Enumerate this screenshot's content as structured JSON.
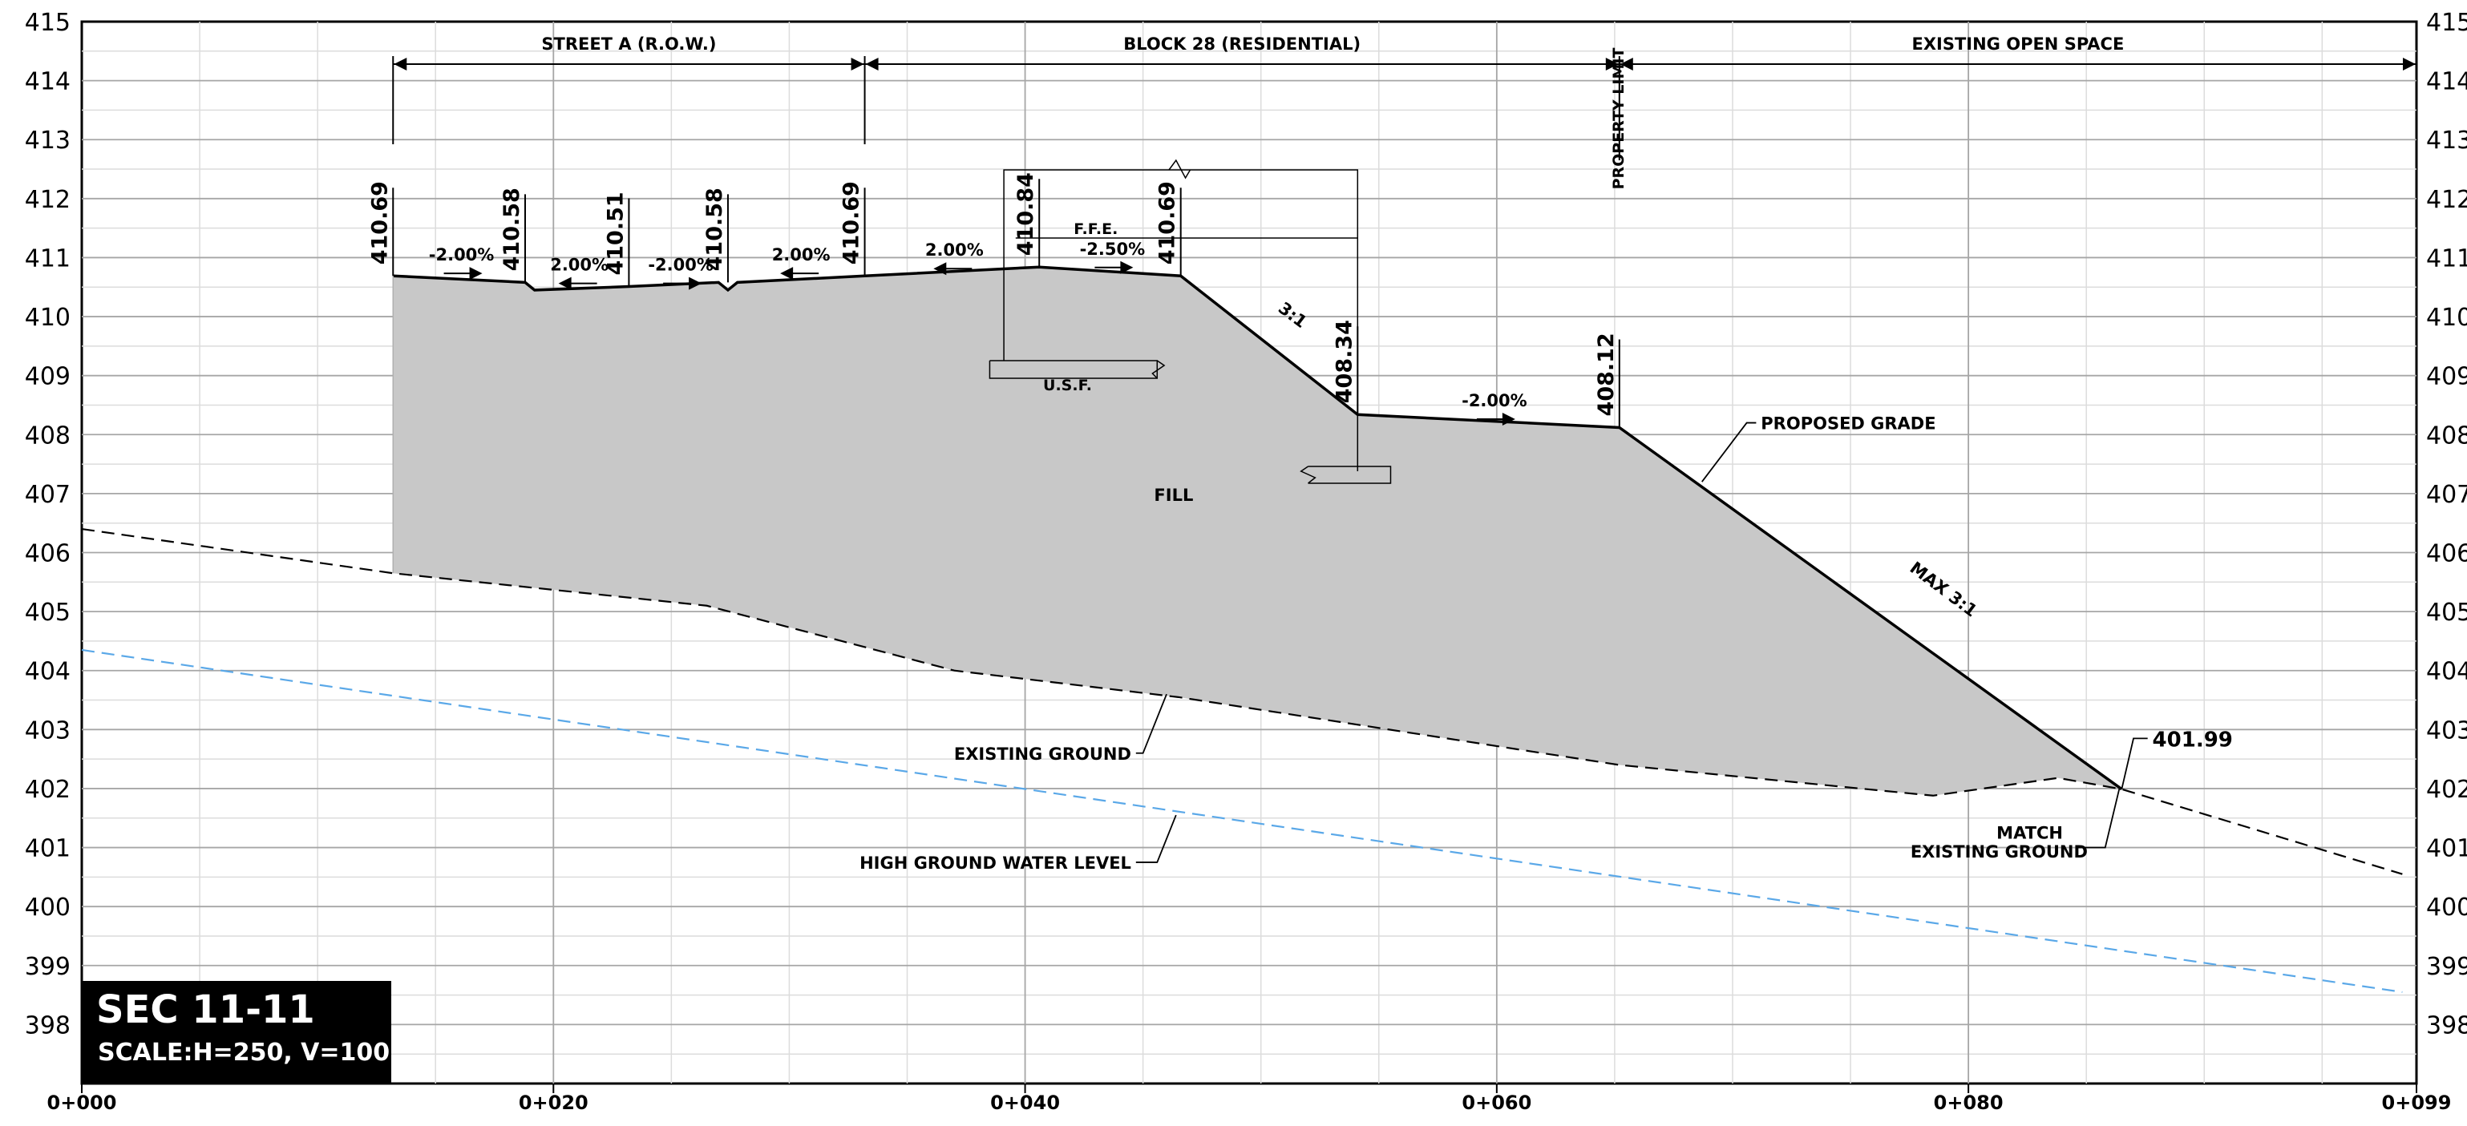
{
  "title_block": {
    "title": "SEC 11-11",
    "scale": "SCALE:H=250, V=100"
  },
  "chart_data": {
    "type": "line",
    "y_ticks": [
      "415",
      "414",
      "413",
      "412",
      "411",
      "410",
      "409",
      "408",
      "407",
      "406",
      "405",
      "404",
      "403",
      "402",
      "401",
      "400",
      "399",
      "398"
    ],
    "x_ticks": [
      {
        "x": 0,
        "label": "0+000"
      },
      {
        "x": 20,
        "label": "0+020"
      },
      {
        "x": 40,
        "label": "0+040"
      },
      {
        "x": 60,
        "label": "0+060"
      },
      {
        "x": 80,
        "label": "0+080"
      },
      {
        "x": 99,
        "label": "0+099"
      }
    ],
    "xlim": [
      0,
      99
    ],
    "ylim": [
      397,
      415
    ],
    "grid": true,
    "zones": [
      {
        "label": "STREET A (R.O.W.)",
        "x0": 13.2,
        "x1": 33.2
      },
      {
        "label": "BLOCK 28 (RESIDENTIAL)",
        "x0": 33.2,
        "x1": 65.2
      },
      {
        "label": "EXISTING OPEN SPACE",
        "x0": 65.2,
        "x1": 99
      }
    ],
    "property_limit": {
      "x": 65.2,
      "label": "PROPERTY LIMIT"
    },
    "series": [
      {
        "name": "PROPOSED GRADE",
        "style": "solid",
        "color": "#000000",
        "points": [
          [
            13.2,
            410.69
          ],
          [
            18.8,
            410.58
          ],
          [
            19.2,
            410.45
          ],
          [
            23.2,
            410.51
          ],
          [
            27.0,
            410.58
          ],
          [
            27.4,
            410.45
          ],
          [
            27.8,
            410.58
          ],
          [
            33.2,
            410.69
          ],
          [
            40.6,
            410.84
          ],
          [
            46.6,
            410.69
          ],
          [
            54.1,
            408.34
          ],
          [
            65.2,
            408.12
          ],
          [
            86.5,
            401.99
          ]
        ]
      },
      {
        "name": "EXISTING GROUND",
        "style": "dashed",
        "color": "#000000",
        "points": [
          [
            0,
            406.4
          ],
          [
            13.2,
            405.65
          ],
          [
            26.5,
            405.1
          ],
          [
            37.0,
            404.0
          ],
          [
            46.5,
            403.55
          ],
          [
            65.2,
            402.4
          ],
          [
            78.5,
            401.88
          ],
          [
            83.8,
            402.18
          ],
          [
            86.5,
            401.99
          ],
          [
            98.4,
            400.55
          ]
        ]
      },
      {
        "name": "HIGH GROUND WATER LEVEL",
        "style": "dashed",
        "color": "#5aa8e8",
        "points": [
          [
            0,
            404.35
          ],
          [
            98.4,
            398.55
          ]
        ]
      }
    ],
    "elevation_labels": [
      {
        "x": 13.2,
        "y": 410.69,
        "text": "410.69"
      },
      {
        "x": 18.8,
        "y": 410.58,
        "text": "410.58"
      },
      {
        "x": 23.2,
        "y": 410.51,
        "text": "410.51"
      },
      {
        "x": 27.4,
        "y": 410.58,
        "text": "410.58"
      },
      {
        "x": 33.2,
        "y": 410.69,
        "text": "410.69"
      },
      {
        "x": 40.6,
        "y": 410.84,
        "text": "410.84"
      },
      {
        "x": 46.6,
        "y": 410.69,
        "text": "410.69"
      },
      {
        "x": 54.1,
        "y": 408.34,
        "text": "408.34"
      },
      {
        "x": 65.2,
        "y": 408.12,
        "text": "408.12"
      }
    ],
    "slope_labels": [
      {
        "x": 16.1,
        "y": 410.95,
        "text": "-2.00%"
      },
      {
        "x": 21.1,
        "y": 410.78,
        "text": "2.00%"
      },
      {
        "x": 25.4,
        "y": 410.78,
        "text": "-2.00%"
      },
      {
        "x": 30.5,
        "y": 410.95,
        "text": "2.00%"
      },
      {
        "x": 37.0,
        "y": 411.03,
        "text": "2.00%"
      },
      {
        "x": 43.7,
        "y": 411.05,
        "text": "-2.50%"
      },
      {
        "x": 51.2,
        "y": 409.95,
        "text": "3:1"
      },
      {
        "x": 59.9,
        "y": 408.48,
        "text": "-2.00%"
      },
      {
        "x": 78.8,
        "y": 405.3,
        "text": "MAX 3:1"
      }
    ],
    "annotations": {
      "ffe": "F.F.E.",
      "usf": "U.S.F.",
      "fill": "FILL",
      "proposed_grade": "PROPOSED GRADE",
      "existing_ground": "EXISTING GROUND",
      "hgwl": "HIGH GROUND WATER LEVEL",
      "match_value": "401.99",
      "match_line1": "MATCH",
      "match_line2": "EXISTING GROUND"
    }
  }
}
